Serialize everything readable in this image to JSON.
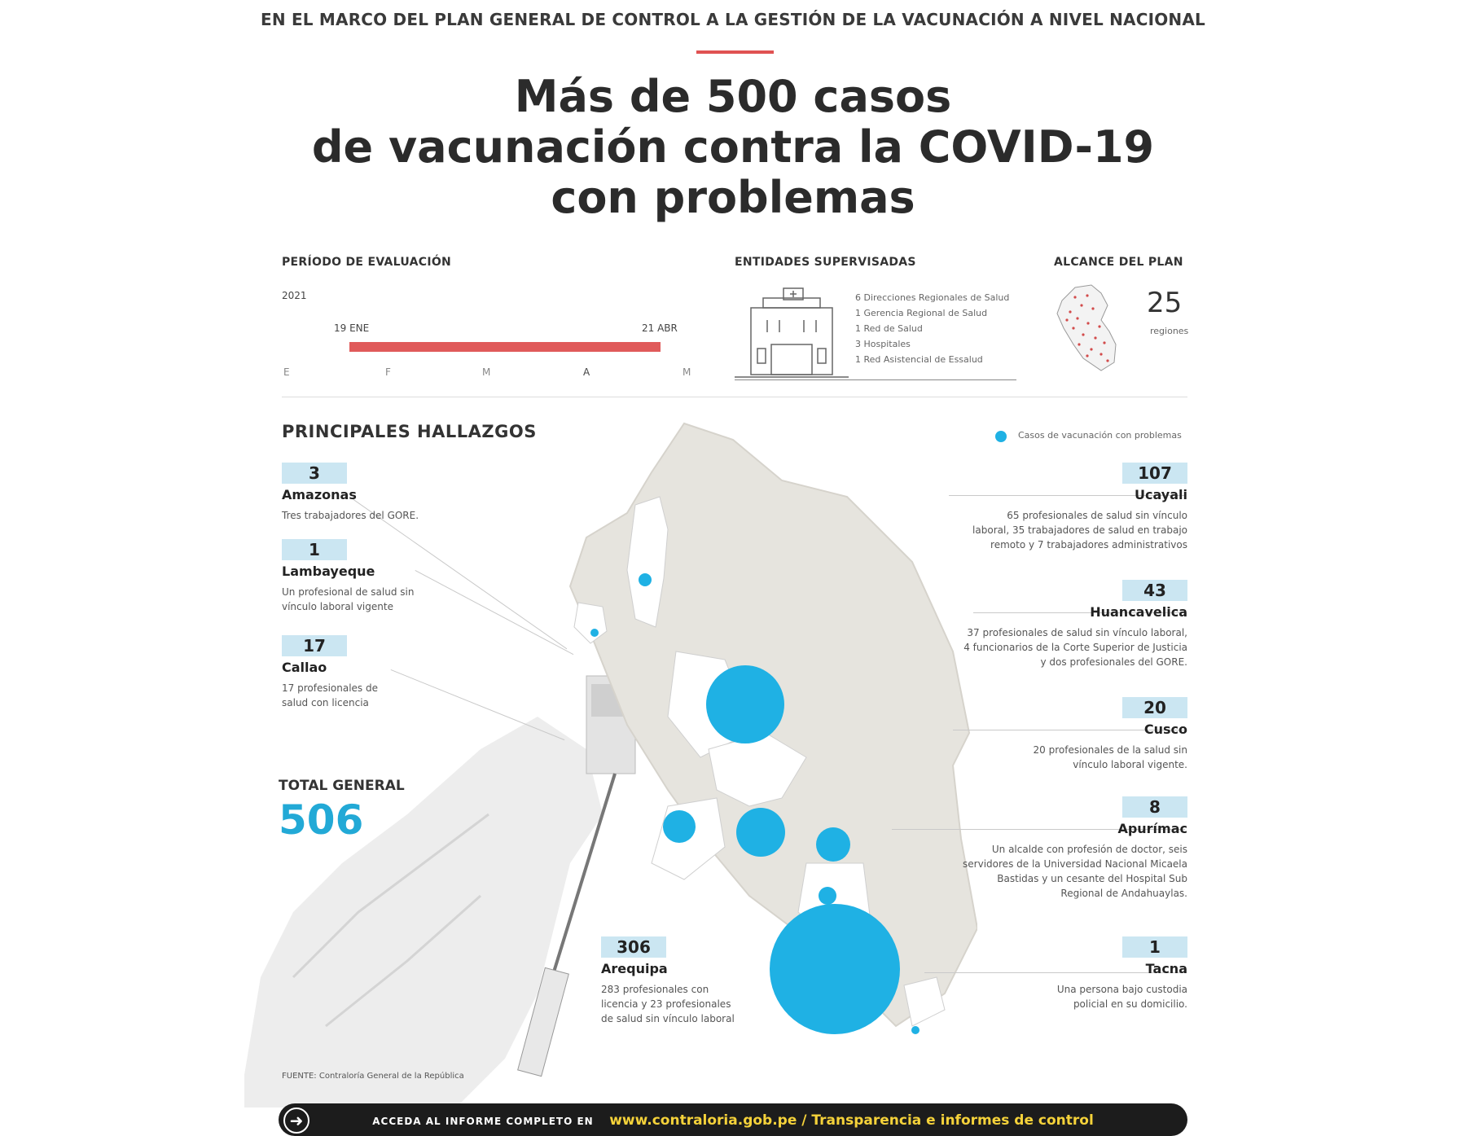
{
  "header": {
    "kicker": "EN EL MARCO DEL PLAN GENERAL DE CONTROL A LA GESTIÓN DE LA VACUNACIÓN A NIVEL NACIONAL",
    "title_line1": "Más de 500 casos",
    "title_line2": "de vacunación contra la COVID-19",
    "title_line3": "con problemas"
  },
  "periodo": {
    "label": "PERÍODO DE EVALUACIÓN",
    "year": "2021",
    "start": "19 ENE",
    "end": "21 ABR",
    "months": [
      "E",
      "F",
      "M",
      "A",
      "M"
    ]
  },
  "entidades": {
    "label": "ENTIDADES SUPERVISADAS",
    "items": [
      "6 Direcciones Regionales de Salud",
      "1 Gerencia Regional de Salud",
      "1 Red de Salud",
      "3 Hospitales",
      "1 Red Asistencial de Essalud"
    ]
  },
  "alcance": {
    "label": "ALCANCE DEL PLAN",
    "value": "25",
    "unit": "regiones"
  },
  "hallazgos": {
    "title": "PRINCIPALES HALLAZGOS",
    "legend": "Casos de vacunación con problemas",
    "total_label": "TOTAL GENERAL",
    "total_value": "506",
    "left": [
      {
        "count": "3",
        "region": "Amazonas",
        "desc": "Tres trabajadores del GORE."
      },
      {
        "count": "1",
        "region": "Lambayeque",
        "desc": "Un profesional de salud sin vínculo laboral vigente"
      },
      {
        "count": "17",
        "region": "Callao",
        "desc": "17 profesionales de salud con licencia"
      }
    ],
    "right": [
      {
        "count": "107",
        "region": "Ucayali",
        "desc": "65 profesionales de salud sin vínculo laboral, 35 trabajadores de salud en trabajo remoto y 7 trabajadores administrativos"
      },
      {
        "count": "43",
        "region": "Huancavelica",
        "desc": "37 profesionales de salud sin vínculo laboral, 4 funcionarios de la Corte Superior de Justicia y dos profesionales del GORE."
      },
      {
        "count": "20",
        "region": "Cusco",
        "desc": "20 profesionales de la salud sin vínculo laboral vigente."
      },
      {
        "count": "8",
        "region": "Apurímac",
        "desc": "Un alcalde con profesión de doctor, seis servidores de la Universidad Nacional Micaela Bastidas y un cesante del Hospital Sub Regional de Andahuaylas."
      },
      {
        "count": "1",
        "region": "Tacna",
        "desc": "Una persona bajo custodia policial en su domicilio."
      }
    ],
    "arequipa": {
      "count": "306",
      "region": "Arequipa",
      "desc": "283 profesionales con licencia y 23 profesionales de salud sin vínculo laboral"
    }
  },
  "source": "FUENTE: Contraloría General de la República",
  "footer": {
    "lead": "ACCEDA AL INFORME COMPLETO EN",
    "link": "www.contraloria.gob.pe / Transparencia e informes de control"
  },
  "colors": {
    "accent": "#e05a5a",
    "bubble": "#1fb1e4",
    "badge": "#cbe6f2"
  }
}
